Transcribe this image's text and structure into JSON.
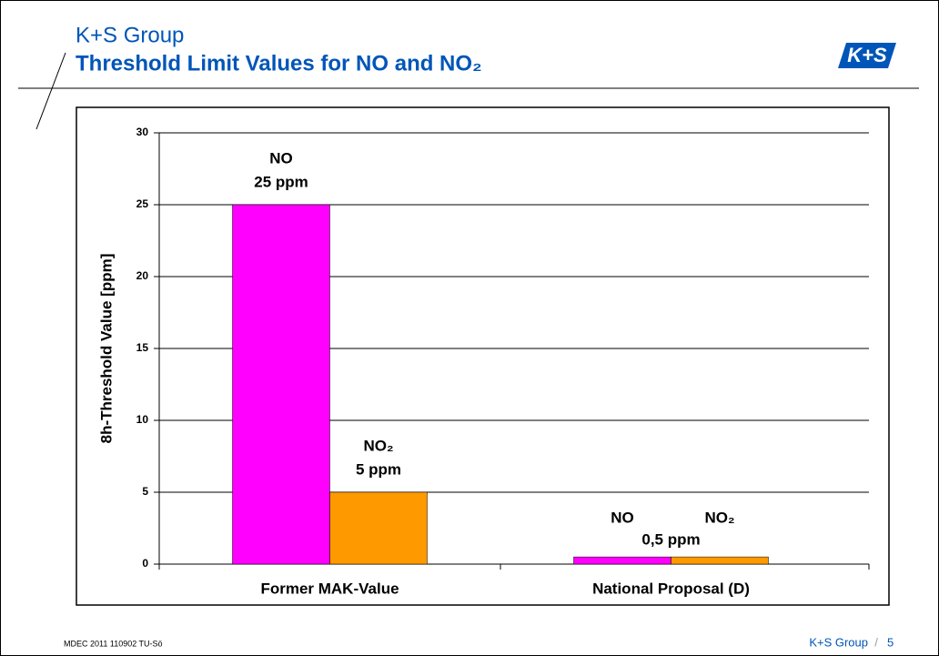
{
  "header": {
    "company": "K+S Group",
    "logo": "K+S"
  },
  "chart_data": {
    "type": "bar",
    "title": "Threshold Limit Values for NO and NO₂",
    "y_label": "8h-Threshold Value [ppm]",
    "categories": [
      "Former MAK-Value",
      "National Proposal (D)"
    ],
    "series": [
      {
        "name": "NO",
        "color": "#ff00ff",
        "values": [
          25,
          0.5
        ],
        "value_labels": [
          "25 ppm",
          "0,5 ppm"
        ]
      },
      {
        "name": "NO₂",
        "color": "#ff9900",
        "values": [
          5,
          0.5
        ],
        "value_labels": [
          "5 ppm",
          null
        ]
      }
    ],
    "ylim": [
      0,
      30
    ],
    "yticks": [
      0,
      5,
      10,
      15,
      20,
      25,
      30
    ],
    "grid": true
  },
  "footer": {
    "left": "MDEC 2011 110902  TU-Sö",
    "company": "K+S Group",
    "page": "5"
  }
}
